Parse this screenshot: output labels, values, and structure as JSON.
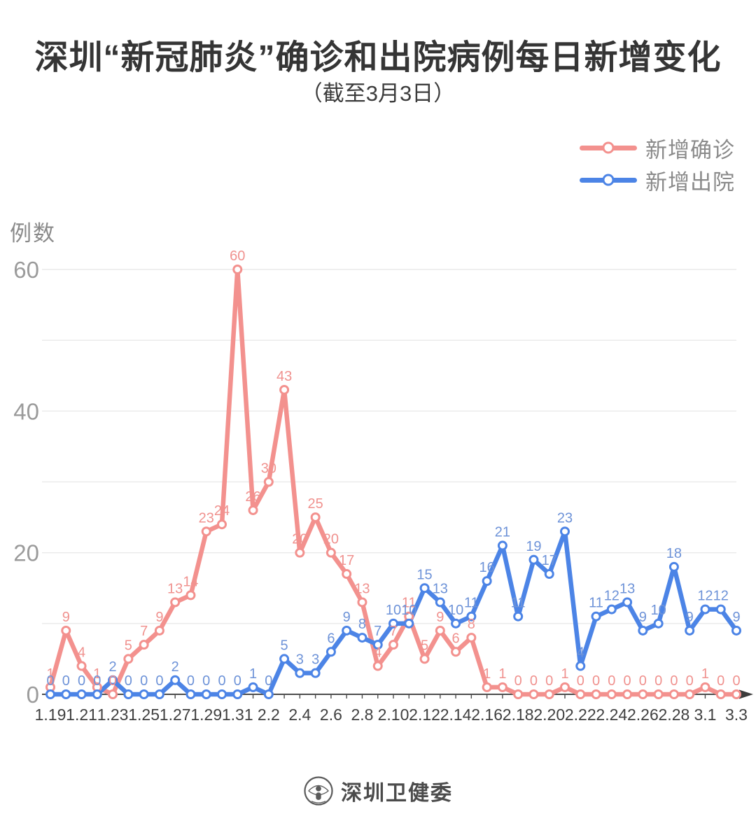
{
  "header": {
    "title": "深圳“新冠肺炎”确诊和出院病例每日新增变化",
    "subtitle": "（截至3月3日）"
  },
  "legend": {
    "position": "top-right",
    "items": [
      {
        "label": "新增确诊",
        "color": "#f3918e",
        "label_color": "#f0928f"
      },
      {
        "label": "新增出院",
        "color": "#4c84e6",
        "label_color": "#6e93d8"
      }
    ]
  },
  "chart_data": {
    "type": "line",
    "title": "深圳“新冠肺炎”确诊和出院病例每日新增变化",
    "subtitle": "（截至3月3日）",
    "ylabel": "例数",
    "xlabel": "",
    "ylim": [
      0,
      60
    ],
    "yticks": [
      0,
      20,
      40,
      60
    ],
    "grid": {
      "horizontal": true,
      "vertical": false,
      "interval": 10
    },
    "legend_position": "top-right",
    "point_labels_shown": true,
    "categories": [
      "1.19",
      "1.20",
      "1.21",
      "1.22",
      "1.23",
      "1.24",
      "1.25",
      "1.26",
      "1.27",
      "1.28",
      "1.29",
      "1.30",
      "1.31",
      "2.1",
      "2.2",
      "2.3",
      "2.4",
      "2.5",
      "2.6",
      "2.7",
      "2.8",
      "2.9",
      "2.10",
      "2.11",
      "2.12",
      "2.13",
      "2.14",
      "2.15",
      "2.16",
      "2.17",
      "2.18",
      "2.19",
      "2.20",
      "2.21",
      "2.22",
      "2.23",
      "2.24",
      "2.25",
      "2.26",
      "2.27",
      "2.28",
      "2.29",
      "3.1",
      "3.2",
      "3.3"
    ],
    "x_tick_labels": [
      "1.19",
      "1.21",
      "1.23",
      "1.25",
      "1.27",
      "1.29",
      "1.31",
      "2.2",
      "2.4",
      "2.6",
      "2.8",
      "2.10",
      "2.12",
      "2.14",
      "2.16",
      "2.18",
      "2.20",
      "2.22",
      "2.24",
      "2.26",
      "2.28",
      "3.1",
      "3.3"
    ],
    "series": [
      {
        "name": "新增确诊",
        "color": "#f3918e",
        "label_color": "#f0928f",
        "values": [
          1,
          9,
          4,
          1,
          0,
          5,
          7,
          9,
          13,
          14,
          23,
          24,
          60,
          26,
          30,
          43,
          20,
          25,
          20,
          17,
          13,
          4,
          7,
          11,
          5,
          9,
          6,
          8,
          1,
          1,
          0,
          0,
          0,
          1,
          0,
          0,
          0,
          0,
          0,
          0,
          0,
          0,
          1,
          0,
          0
        ]
      },
      {
        "name": "新增出院",
        "color": "#4c84e6",
        "label_color": "#6e93d8",
        "values": [
          0,
          0,
          0,
          0,
          2,
          0,
          0,
          0,
          2,
          0,
          0,
          0,
          0,
          1,
          0,
          5,
          3,
          3,
          6,
          9,
          8,
          7,
          10,
          10,
          15,
          13,
          10,
          11,
          16,
          21,
          11,
          19,
          17,
          23,
          4,
          11,
          12,
          13,
          9,
          10,
          18,
          9,
          12,
          12,
          9
        ]
      }
    ]
  },
  "footer": {
    "source": "深圳卫健委",
    "logo": "shenzhen-health-commission-emblem"
  }
}
